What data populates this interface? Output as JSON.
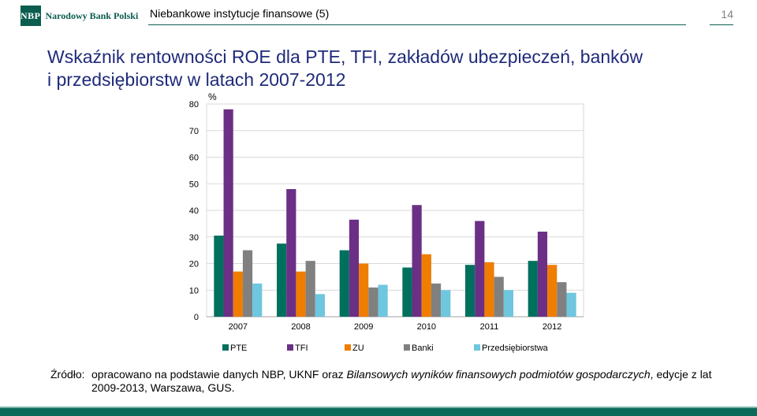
{
  "header": {
    "logo_mark": "NBP",
    "logo_text": "Narodowy Bank Polski",
    "section_title": "Niebankowe instytucje finansowe (5)",
    "page_number": "14"
  },
  "slide": {
    "title_line1": "Wskaźnik rentowności ROE dla PTE, TFI, zakładów ubezpieczeń, banków",
    "title_line2": "i przedsiębiorstw w latach 2007-2012"
  },
  "chart_data": {
    "type": "bar",
    "unit_label": "%",
    "categories": [
      "2007",
      "2008",
      "2009",
      "2010",
      "2011",
      "2012"
    ],
    "ylim": [
      0,
      80
    ],
    "yticks": [
      "0",
      "10",
      "20",
      "30",
      "40",
      "50",
      "60",
      "70",
      "80"
    ],
    "grid": true,
    "legend_position": "bottom",
    "series": [
      {
        "name": "PTE",
        "color": "#00705e",
        "values": [
          30.5,
          27.5,
          25.0,
          18.5,
          19.5,
          21.0
        ]
      },
      {
        "name": "TFI",
        "color": "#6b2f86",
        "values": [
          78.0,
          48.0,
          36.5,
          42.0,
          36.0,
          32.0
        ]
      },
      {
        "name": "ZU",
        "color": "#ef7d00",
        "values": [
          17.0,
          17.0,
          20.0,
          23.5,
          20.5,
          19.5
        ]
      },
      {
        "name": "Banki",
        "color": "#808080",
        "values": [
          25.0,
          21.0,
          11.0,
          12.5,
          15.0,
          13.0
        ]
      },
      {
        "name": "Przedsiębiorstwa",
        "color": "#6ec6df",
        "values": [
          12.5,
          8.5,
          12.0,
          10.0,
          10.0,
          9.0
        ]
      }
    ]
  },
  "source": {
    "label": "Źródło:",
    "text_part1": "opracowano na podstawie danych NBP, UKNF oraz ",
    "text_italic": "Bilansowych wyników finansowych podmiotów gospodarczych",
    "text_part2": ", edycje z lat 2009-2013, Warszawa, GUS."
  },
  "colors": {
    "brand": "#0b5d4e",
    "title": "#1f2a7a"
  }
}
